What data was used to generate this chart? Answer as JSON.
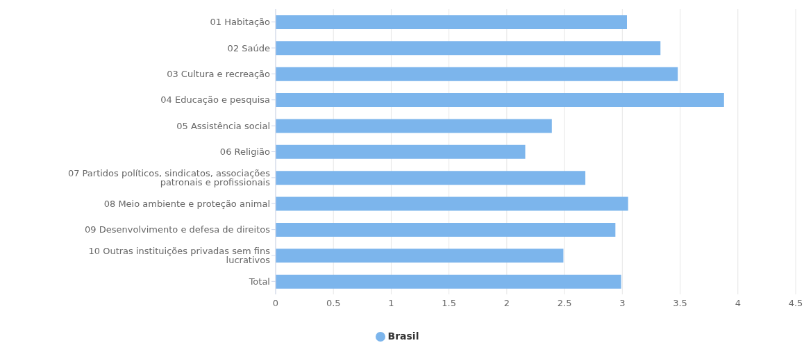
{
  "chart_data": {
    "type": "bar",
    "orientation": "horizontal",
    "categories": [
      "01 Habitação",
      "02 Saúde",
      "03 Cultura e recreação",
      "04 Educação e pesquisa",
      "05 Assistência social",
      "06 Religião",
      "07 Partidos políticos, sindicatos, associações patronais e profissionais",
      "08 Meio ambiente e proteção animal",
      "09 Desenvolvimento e defesa de direitos",
      "10 Outras instituições privadas sem fins lucrativos",
      "Total"
    ],
    "series": [
      {
        "name": "Brasil",
        "color": "#7cb5ec",
        "values": [
          3.04,
          3.33,
          3.48,
          3.88,
          2.39,
          2.16,
          2.68,
          3.05,
          2.94,
          2.49,
          2.99
        ]
      }
    ],
    "xlim": [
      0,
      4.5
    ],
    "xticks": [
      0,
      0.5,
      1,
      1.5,
      2,
      2.5,
      3,
      3.5,
      4,
      4.5
    ],
    "grid": "x",
    "legend": "bottom"
  }
}
